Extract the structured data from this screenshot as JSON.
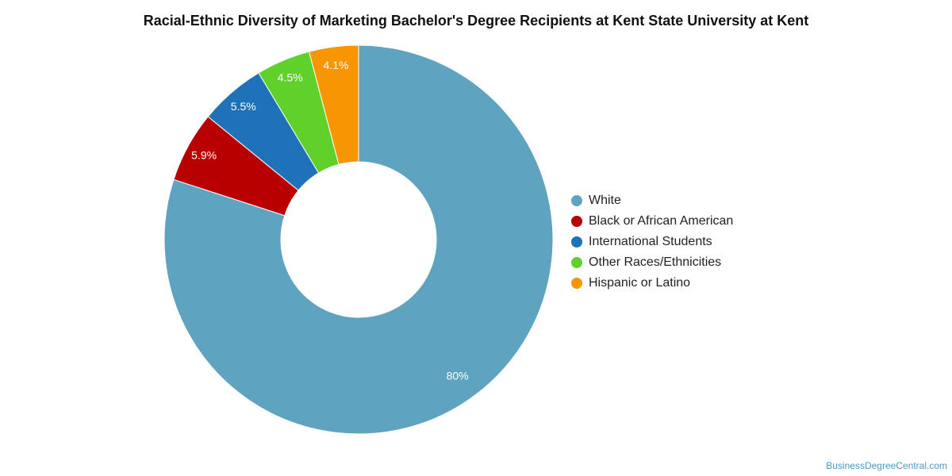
{
  "chart_data": {
    "type": "pie",
    "title": "Racial-Ethnic Diversity of Marketing Bachelor's Degree Recipients at Kent State University at Kent",
    "donut": true,
    "legend_position": "right",
    "slices": [
      {
        "label": "White",
        "value": 80,
        "display": "80%",
        "color": "#5ea3bf"
      },
      {
        "label": "Black or African American",
        "value": 5.9,
        "display": "5.9%",
        "color": "#b80000"
      },
      {
        "label": "International Students",
        "value": 5.5,
        "display": "5.5%",
        "color": "#1f72b8"
      },
      {
        "label": "Other Races/Ethnicities",
        "value": 4.5,
        "display": "4.5%",
        "color": "#5fd12a"
      },
      {
        "label": "Hispanic or Latino",
        "value": 4.1,
        "display": "4.1%",
        "color": "#f79602"
      }
    ]
  },
  "watermark": "BusinessDegreeCentral.com"
}
